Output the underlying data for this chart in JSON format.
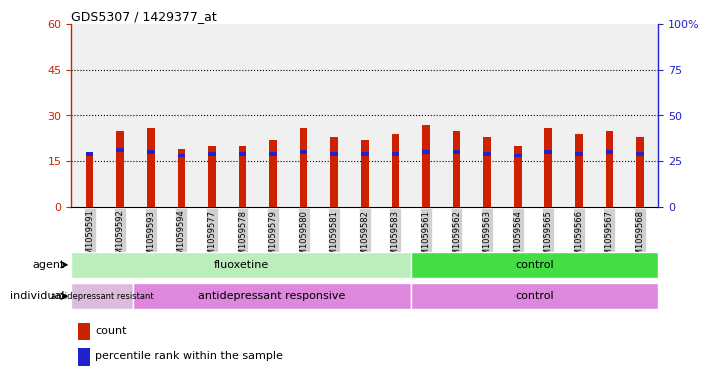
{
  "title": "GDS5307 / 1429377_at",
  "samples": [
    "GSM1059591",
    "GSM1059592",
    "GSM1059593",
    "GSM1059594",
    "GSM1059577",
    "GSM1059578",
    "GSM1059579",
    "GSM1059580",
    "GSM1059581",
    "GSM1059582",
    "GSM1059583",
    "GSM1059561",
    "GSM1059562",
    "GSM1059563",
    "GSM1059564",
    "GSM1059565",
    "GSM1059566",
    "GSM1059567",
    "GSM1059568"
  ],
  "red_values": [
    17,
    25,
    26,
    19,
    20,
    20,
    22,
    26,
    23,
    22,
    24,
    27,
    25,
    23,
    20,
    26,
    24,
    25,
    23
  ],
  "blue_right_vals": [
    30,
    32,
    31,
    29,
    30,
    30,
    30,
    31,
    30,
    30,
    30,
    31,
    31,
    30,
    29,
    31,
    30,
    31,
    30
  ],
  "ylim_left": [
    0,
    60
  ],
  "ylim_right": [
    0,
    100
  ],
  "yticks_left": [
    0,
    15,
    30,
    45,
    60
  ],
  "yticks_right": [
    0,
    25,
    50,
    75,
    100
  ],
  "ytick_labels_right": [
    "0",
    "25",
    "50",
    "75",
    "100%"
  ],
  "bar_width": 0.25,
  "bar_color_red": "#CC2200",
  "bar_color_blue": "#2222CC",
  "agent_groups": [
    {
      "label": "fluoxetine",
      "start": 0,
      "end": 11,
      "color": "#BBEEBB"
    },
    {
      "label": "control",
      "start": 11,
      "end": 19,
      "color": "#44DD44"
    }
  ],
  "individual_groups": [
    {
      "label": "antidepressant resistant",
      "start": 0,
      "end": 2,
      "color": "#DDBBDD"
    },
    {
      "label": "antidepressant responsive",
      "start": 2,
      "end": 11,
      "color": "#DD88DD"
    },
    {
      "label": "control",
      "start": 11,
      "end": 19,
      "color": "#DD88DD"
    }
  ],
  "legend_items": [
    {
      "color": "#CC2200",
      "label": "count"
    },
    {
      "color": "#2222CC",
      "label": "percentile rank within the sample"
    }
  ],
  "plot_bg": "#F0F0F0",
  "tick_bg": "#D0D0D0",
  "left_axis_color": "#CC2200",
  "right_axis_color": "#2222CC",
  "grid_color": "black"
}
